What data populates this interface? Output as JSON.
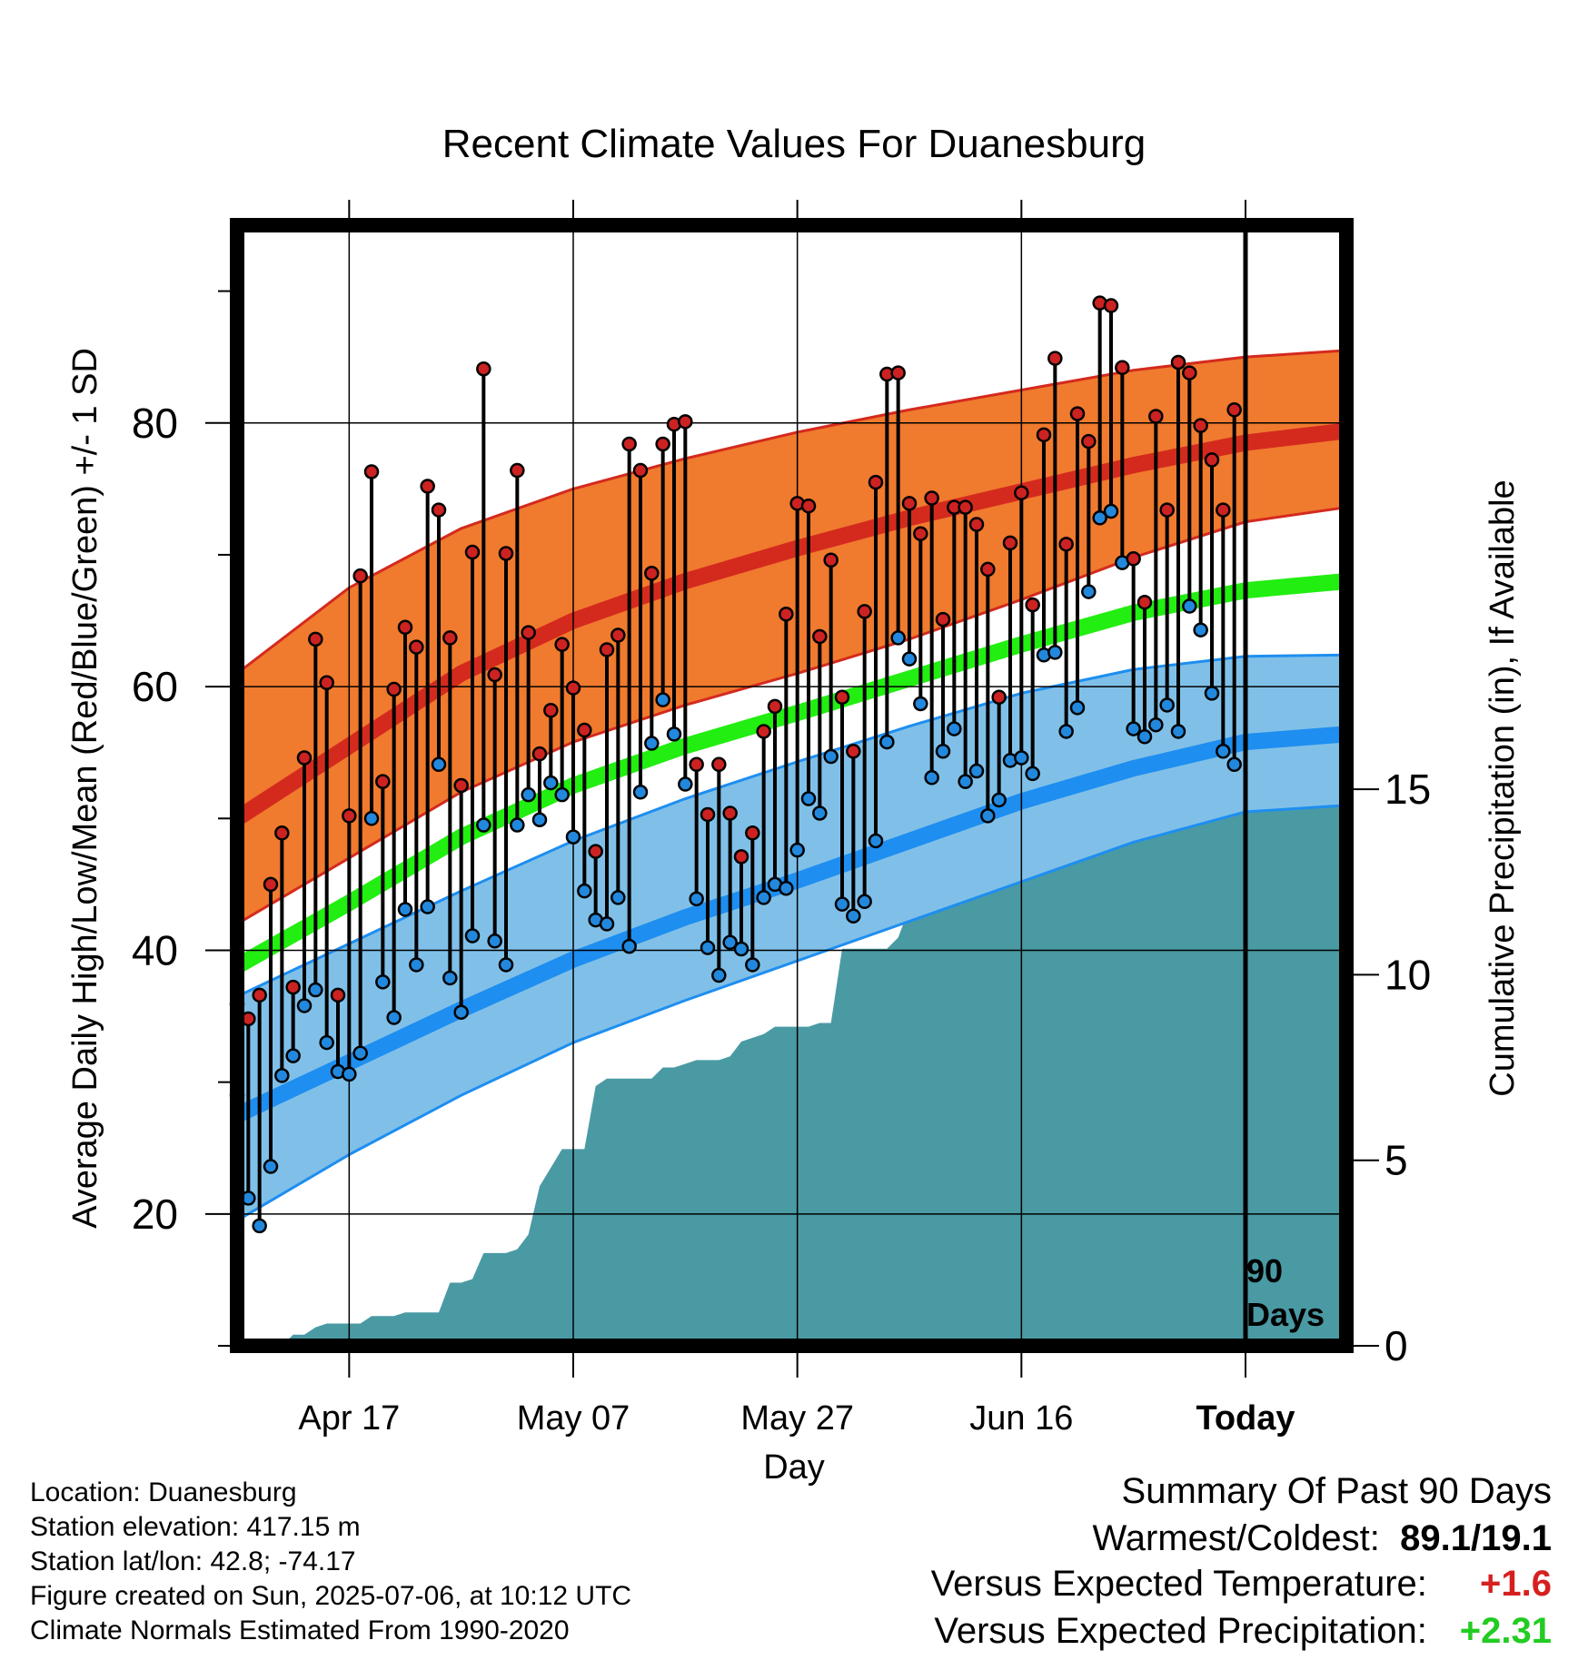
{
  "title": "Recent Climate Values For Duanesburg",
  "y_left_label": "Average Daily High/Low/Mean (Red/Blue/Green) +/- 1 SD",
  "y_right_label": "Cumulative Precipitation (in), If Available",
  "x_label": "Day",
  "marker_label_line1": "90",
  "marker_label_line2": "Days",
  "info": {
    "location": "Location: Duanesburg",
    "elevation": "Station elevation: 417.15 m",
    "latlon": "Station lat/lon: 42.8; -74.17",
    "created": "Figure created on Sun, 2025-07-06, at 10:12 UTC",
    "normals": "Climate Normals Estimated From 1990-2020"
  },
  "summary": {
    "heading": "Summary Of Past 90 Days",
    "warm_cold_label": "Warmest/Coldest:",
    "warm_cold_value": "89.1/19.1",
    "temp_label": "Versus Expected Temperature:",
    "temp_value": "+1.6",
    "temp_color": "#d62020",
    "precip_label": "Versus Expected Precipitation:",
    "precip_value": "+2.31",
    "precip_color": "#22cc22"
  },
  "colors": {
    "high_band": "#f07a2e",
    "high_band_edge": "#d42a1e",
    "high_mean": "#d42a1e",
    "low_band": "#80c0e8",
    "low_band_edge": "#1e8ef0",
    "low_mean": "#1e8ef0",
    "mean_line": "#22ee11",
    "precip": "#4a9aa4",
    "high_marker": "#cc2222",
    "low_marker": "#2288dd"
  },
  "chart_data": {
    "type": "line",
    "title": "Recent Climate Values For Duanesburg",
    "xlabel": "Day",
    "ylabel": "Average Daily High/Low/Mean (Red/Blue/Green) +/- 1 SD",
    "y2label": "Cumulative Precipitation (in), If Available",
    "x_ticks": [
      {
        "day": 10,
        "label": "Apr 17"
      },
      {
        "day": 30,
        "label": "May 07"
      },
      {
        "day": 50,
        "label": "May 27"
      },
      {
        "day": 70,
        "label": "Jun 16"
      },
      {
        "day": 90,
        "label": "Today"
      }
    ],
    "x_range": [
      0,
      99
    ],
    "ylim": [
      10,
      95
    ],
    "y_ticks": [
      20,
      40,
      60,
      80
    ],
    "y2lim": [
      0,
      30.2
    ],
    "y2_ticks": [
      0,
      5,
      10,
      15
    ],
    "grid": true,
    "today_day": 90,
    "normals": {
      "days": [
        0,
        10,
        20,
        30,
        40,
        50,
        60,
        70,
        80,
        90,
        99
      ],
      "high_mean": [
        50,
        55.5,
        61,
        65,
        68,
        70.5,
        72.8,
        74.8,
        76.8,
        78.5,
        79.4
      ],
      "high_upper": [
        61,
        67.5,
        72,
        75,
        77.3,
        79.3,
        81,
        82.5,
        84,
        85,
        85.5
      ],
      "high_lower": [
        42,
        47,
        52,
        55.8,
        58.6,
        61,
        63.6,
        66.6,
        69.8,
        72.5,
        73.6
      ],
      "mean_line": [
        38.8,
        43.6,
        48.6,
        52.5,
        55.5,
        58,
        60.6,
        63.2,
        65.6,
        67.3,
        68
      ],
      "low_mean": [
        27.5,
        31.5,
        35.5,
        39.3,
        42.5,
        45.3,
        48.3,
        51.3,
        53.8,
        55.8,
        56.4
      ],
      "low_upper": [
        36.5,
        40.5,
        44.5,
        48.3,
        51.5,
        54.3,
        57,
        59.5,
        61.3,
        62.3,
        62.4
      ],
      "low_lower": [
        19.5,
        24.5,
        29,
        33,
        36.2,
        39.2,
        42.2,
        45.2,
        48.2,
        50.5,
        51
      ]
    },
    "daily": [
      {
        "day": 0,
        "high": 35.9,
        "low": 29.0
      },
      {
        "day": 1,
        "high": 34.8,
        "low": 21.2
      },
      {
        "day": 2,
        "high": 36.6,
        "low": 19.1
      },
      {
        "day": 3,
        "high": 45.0,
        "low": 23.6
      },
      {
        "day": 4,
        "high": 48.9,
        "low": 30.5
      },
      {
        "day": 5,
        "high": 37.2,
        "low": 32.0
      },
      {
        "day": 6,
        "high": 54.6,
        "low": 35.8
      },
      {
        "day": 7,
        "high": 63.6,
        "low": 37.0
      },
      {
        "day": 8,
        "high": 60.3,
        "low": 33.0
      },
      {
        "day": 9,
        "high": 36.6,
        "low": 30.8
      },
      {
        "day": 10,
        "high": 50.2,
        "low": 30.6
      },
      {
        "day": 11,
        "high": 68.4,
        "low": 32.2
      },
      {
        "day": 12,
        "high": 76.3,
        "low": 50.0
      },
      {
        "day": 13,
        "high": 52.8,
        "low": 37.6
      },
      {
        "day": 14,
        "high": 59.8,
        "low": 34.9
      },
      {
        "day": 15,
        "high": 64.5,
        "low": 43.1
      },
      {
        "day": 16,
        "high": 63.0,
        "low": 38.9
      },
      {
        "day": 17,
        "high": 75.2,
        "low": 43.3
      },
      {
        "day": 18,
        "high": 73.4,
        "low": 54.1
      },
      {
        "day": 19,
        "high": 63.7,
        "low": 37.9
      },
      {
        "day": 20,
        "high": 52.5,
        "low": 35.3
      },
      {
        "day": 21,
        "high": 70.2,
        "low": 41.1
      },
      {
        "day": 22,
        "high": 84.1,
        "low": 49.5
      },
      {
        "day": 23,
        "high": 60.9,
        "low": 40.7
      },
      {
        "day": 24,
        "high": 70.1,
        "low": 38.9
      },
      {
        "day": 25,
        "high": 76.4,
        "low": 49.5
      },
      {
        "day": 26,
        "high": 64.1,
        "low": 51.8
      },
      {
        "day": 27,
        "high": 54.9,
        "low": 49.9
      },
      {
        "day": 28,
        "high": 58.2,
        "low": 52.7
      },
      {
        "day": 29,
        "high": 63.2,
        "low": 51.8
      },
      {
        "day": 30,
        "high": 59.9,
        "low": 48.6
      },
      {
        "day": 31,
        "high": 56.7,
        "low": 44.5
      },
      {
        "day": 32,
        "high": 47.5,
        "low": 42.3
      },
      {
        "day": 33,
        "high": 62.8,
        "low": 42.0
      },
      {
        "day": 34,
        "high": 63.9,
        "low": 44.0
      },
      {
        "day": 35,
        "high": 78.4,
        "low": 40.3
      },
      {
        "day": 36,
        "high": 76.4,
        "low": 52.0
      },
      {
        "day": 37,
        "high": 68.6,
        "low": 55.7
      },
      {
        "day": 38,
        "high": 78.4,
        "low": 59.0
      },
      {
        "day": 39,
        "high": 79.9,
        "low": 56.4
      },
      {
        "day": 40,
        "high": 80.1,
        "low": 52.6
      },
      {
        "day": 41,
        "high": 54.1,
        "low": 43.9
      },
      {
        "day": 42,
        "high": 50.3,
        "low": 40.2
      },
      {
        "day": 43,
        "high": 54.1,
        "low": 38.1
      },
      {
        "day": 44,
        "high": 50.4,
        "low": 40.6
      },
      {
        "day": 45,
        "high": 47.1,
        "low": 40.1
      },
      {
        "day": 46,
        "high": 48.9,
        "low": 38.9
      },
      {
        "day": 47,
        "high": 56.6,
        "low": 44.0
      },
      {
        "day": 48,
        "high": 58.5,
        "low": 45.0
      },
      {
        "day": 49,
        "high": 65.5,
        "low": 44.7
      },
      {
        "day": 50,
        "high": 73.9,
        "low": 47.6
      },
      {
        "day": 51,
        "high": 73.7,
        "low": 51.5
      },
      {
        "day": 52,
        "high": 63.8,
        "low": 50.4
      },
      {
        "day": 53,
        "high": 69.6,
        "low": 54.7
      },
      {
        "day": 54,
        "high": 59.2,
        "low": 43.5
      },
      {
        "day": 55,
        "high": 55.1,
        "low": 42.6
      },
      {
        "day": 56,
        "high": 65.7,
        "low": 43.7
      },
      {
        "day": 57,
        "high": 75.5,
        "low": 48.3
      },
      {
        "day": 58,
        "high": 83.7,
        "low": 55.8
      },
      {
        "day": 59,
        "high": 83.8,
        "low": 63.7
      },
      {
        "day": 60,
        "high": 73.9,
        "low": 62.1
      },
      {
        "day": 61,
        "high": 71.6,
        "low": 58.7
      },
      {
        "day": 62,
        "high": 74.3,
        "low": 53.1
      },
      {
        "day": 63,
        "high": 65.1,
        "low": 55.1
      },
      {
        "day": 64,
        "high": 73.6,
        "low": 56.8
      },
      {
        "day": 65,
        "high": 73.6,
        "low": 52.8
      },
      {
        "day": 66,
        "high": 72.3,
        "low": 53.6
      },
      {
        "day": 67,
        "high": 68.9,
        "low": 50.2
      },
      {
        "day": 68,
        "high": 59.2,
        "low": 51.4
      },
      {
        "day": 69,
        "high": 70.9,
        "low": 54.4
      },
      {
        "day": 70,
        "high": 74.7,
        "low": 54.6
      },
      {
        "day": 71,
        "high": 66.2,
        "low": 53.4
      },
      {
        "day": 72,
        "high": 79.1,
        "low": 62.4
      },
      {
        "day": 73,
        "high": 84.9,
        "low": 62.6
      },
      {
        "day": 74,
        "high": 70.8,
        "low": 56.6
      },
      {
        "day": 75,
        "high": 80.7,
        "low": 58.4
      },
      {
        "day": 76,
        "high": 78.6,
        "low": 67.2
      },
      {
        "day": 77,
        "high": 89.1,
        "low": 72.8
      },
      {
        "day": 78,
        "high": 88.9,
        "low": 73.3
      },
      {
        "day": 79,
        "high": 84.2,
        "low": 69.4
      },
      {
        "day": 80,
        "high": 69.7,
        "low": 56.8
      },
      {
        "day": 81,
        "high": 66.4,
        "low": 56.2
      },
      {
        "day": 82,
        "high": 80.5,
        "low": 57.1
      },
      {
        "day": 83,
        "high": 73.4,
        "low": 58.6
      },
      {
        "day": 84,
        "high": 84.6,
        "low": 56.6
      },
      {
        "day": 85,
        "high": 83.8,
        "low": 66.1
      },
      {
        "day": 86,
        "high": 79.8,
        "low": 64.3
      },
      {
        "day": 87,
        "high": 77.2,
        "low": 59.5
      },
      {
        "day": 88,
        "high": 73.4,
        "low": 55.1
      },
      {
        "day": 89,
        "high": 81.0,
        "low": 54.1
      }
    ],
    "precip_cumulative": {
      "days": [
        0,
        4,
        5,
        6,
        7,
        8,
        9,
        10,
        11,
        12,
        13,
        14,
        15,
        16,
        17,
        18,
        19,
        20,
        21,
        22,
        23,
        24,
        25,
        26,
        27,
        28,
        29,
        30,
        31,
        32,
        33,
        34,
        35,
        36,
        37,
        38,
        39,
        40,
        41,
        42,
        43,
        44,
        45,
        46,
        47,
        48,
        49,
        50,
        51,
        52,
        53,
        54,
        55,
        56,
        57,
        58,
        59,
        60,
        61,
        62,
        63,
        64,
        65,
        66,
        67,
        68,
        69,
        70,
        71,
        72,
        73,
        74,
        75,
        76,
        77,
        78,
        79,
        80,
        81,
        82,
        83,
        84,
        85,
        86,
        87,
        88,
        89,
        90,
        99
      ],
      "values": [
        0,
        0,
        0.3,
        0.3,
        0.5,
        0.6,
        0.6,
        0.6,
        0.6,
        0.8,
        0.8,
        0.8,
        0.9,
        0.9,
        0.9,
        0.9,
        1.7,
        1.7,
        1.8,
        2.5,
        2.5,
        2.5,
        2.6,
        3.0,
        4.3,
        4.8,
        5.3,
        5.3,
        5.3,
        7.0,
        7.2,
        7.2,
        7.2,
        7.2,
        7.2,
        7.5,
        7.5,
        7.6,
        7.7,
        7.7,
        7.7,
        7.8,
        8.2,
        8.3,
        8.4,
        8.6,
        8.6,
        8.6,
        8.6,
        8.7,
        8.7,
        10.7,
        10.7,
        10.7,
        10.7,
        10.7,
        11.0,
        11.8,
        13.0,
        13.2,
        13.7,
        13.9,
        14.0,
        14.0,
        14.0,
        14.1,
        14.1,
        14.1,
        14.3,
        14.3,
        14.5,
        14.6,
        14.6,
        14.6,
        14.6,
        14.7,
        14.7,
        14.7,
        14.7,
        14.9,
        14.9,
        14.9,
        14.9,
        15.0,
        15.0,
        15.0,
        15.0,
        15.0,
        15.0
      ]
    }
  }
}
